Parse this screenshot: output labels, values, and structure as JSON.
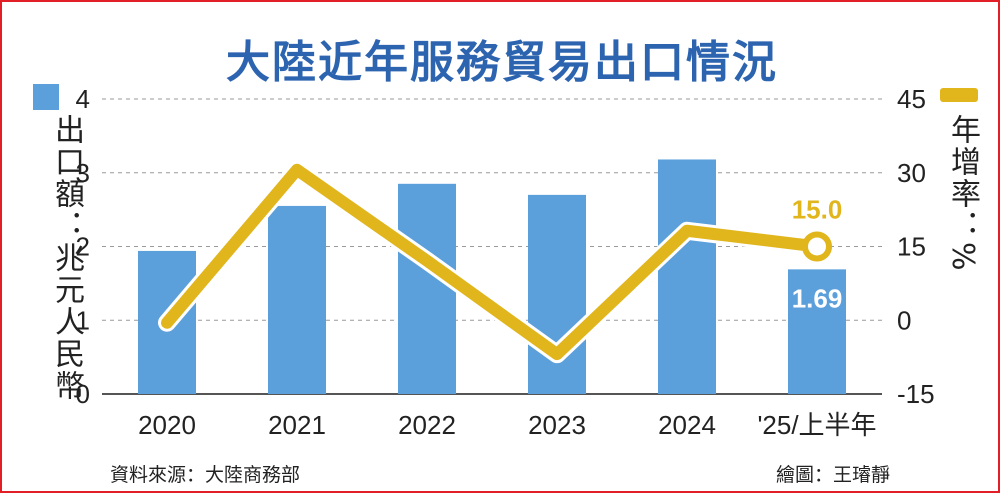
{
  "title": "大陸近年服務貿易出口情況",
  "left_axis_unit": "出口額：兆元人民幣",
  "right_axis_unit": "年增率：%",
  "source": "資料來源：大陸商務部",
  "credit": "繪圖：王璿靜",
  "colors": {
    "bar": "#5b9fdb",
    "line": "#e1b51c",
    "title": "#2d64b0",
    "frame": "#e21f26"
  },
  "chart_data": {
    "type": "bar+line",
    "categories": [
      "2020",
      "2021",
      "2022",
      "2023",
      "2024",
      "'25/上半年"
    ],
    "series": [
      {
        "name": "出口額",
        "axis": "left",
        "type": "bar",
        "values": [
          1.94,
          2.55,
          2.85,
          2.7,
          3.18,
          1.69
        ]
      },
      {
        "name": "年增率",
        "axis": "right",
        "type": "line",
        "values": [
          -0.5,
          30.6,
          12.1,
          -6.9,
          18.2,
          15.0
        ]
      }
    ],
    "left_axis": {
      "min": 0,
      "max": 4,
      "ticks": [
        "0",
        "1",
        "2",
        "3",
        "4"
      ]
    },
    "right_axis": {
      "min": -15,
      "max": 45,
      "ticks": [
        "-15",
        "0",
        "15",
        "30",
        "45"
      ]
    },
    "data_labels": [
      {
        "series": "年增率",
        "index": 5,
        "text": "15.0"
      },
      {
        "series": "出口額",
        "index": 5,
        "text": "1.69"
      }
    ],
    "grid": true
  }
}
